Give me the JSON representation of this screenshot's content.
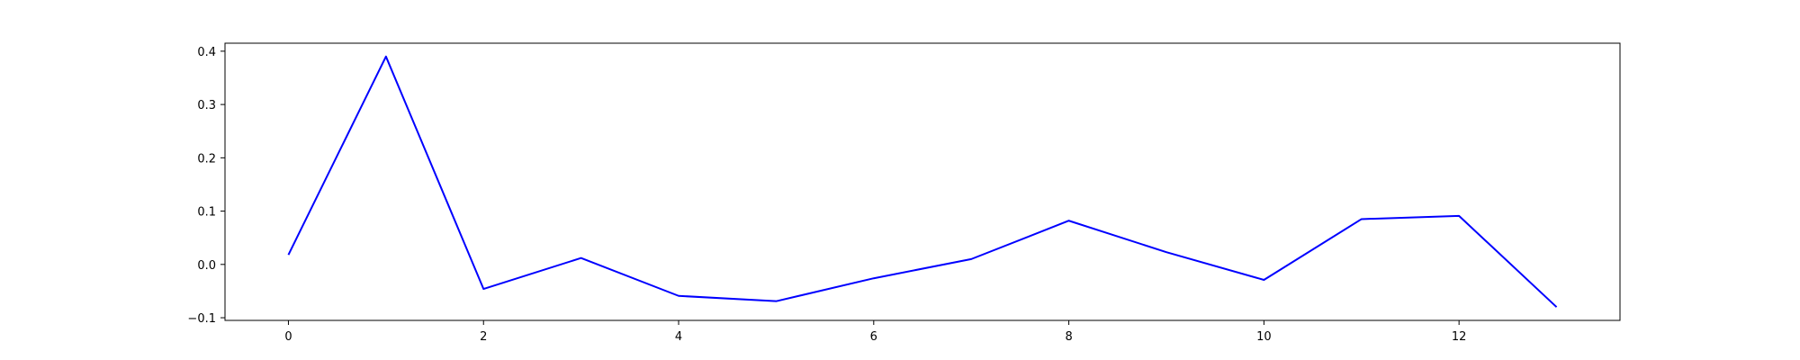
{
  "chart_data": {
    "type": "line",
    "title": "",
    "xlabel": "",
    "ylabel": "",
    "xlim": [
      -0.65,
      13.65
    ],
    "ylim": [
      -0.105,
      0.415
    ],
    "grid": false,
    "legend": "none",
    "xticks": [
      0,
      2,
      4,
      6,
      8,
      10,
      12
    ],
    "yticks": [
      -0.1,
      0.0,
      0.1,
      0.2,
      0.3,
      0.4
    ],
    "xtick_labels": [
      "0",
      "2",
      "4",
      "6",
      "8",
      "10",
      "12"
    ],
    "ytick_labels": [
      "−0.1",
      "0.0",
      "0.1",
      "0.2",
      "0.3",
      "0.4"
    ],
    "series": [
      {
        "color": "#0000ff",
        "x": [
          0,
          1,
          2,
          3,
          4,
          5,
          6,
          7,
          8,
          9,
          10,
          11,
          12,
          13
        ],
        "values": [
          0.018,
          0.39,
          -0.046,
          0.012,
          -0.059,
          -0.069,
          -0.026,
          0.01,
          0.082,
          0.023,
          -0.029,
          0.085,
          0.091,
          -0.08
        ]
      }
    ]
  }
}
